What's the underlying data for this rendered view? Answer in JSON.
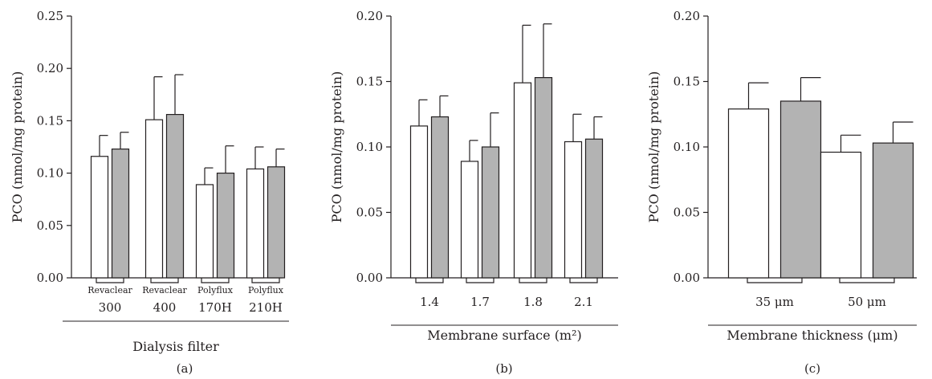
{
  "colors": {
    "before": "#ffffff",
    "after": "#b3b3b3",
    "stroke": "#231f20"
  },
  "chart_data": [
    {
      "panel": "(a)",
      "type": "bar",
      "ylabel": "PCO (nmol/mg protein)",
      "xlabel": "Dialysis filter",
      "ylim": [
        0,
        0.25
      ],
      "yticks": [
        "0.00",
        "0.05",
        "0.10",
        "0.15",
        "0.20",
        "0.25"
      ],
      "categories": [
        {
          "line1": "Revaclear",
          "line2": "300"
        },
        {
          "line1": "Revaclear",
          "line2": "400"
        },
        {
          "line1": "Polyflux",
          "line2": "170H"
        },
        {
          "line1": "Polyflux",
          "line2": "210H"
        }
      ],
      "series": [
        {
          "values": [
            0.116,
            0.151,
            0.089,
            0.104
          ],
          "errors": [
            0.02,
            0.041,
            0.016,
            0.021
          ]
        },
        {
          "values": [
            0.123,
            0.156,
            0.1,
            0.106
          ],
          "errors": [
            0.016,
            0.038,
            0.026,
            0.017
          ]
        }
      ],
      "grid": false
    },
    {
      "panel": "(b)",
      "type": "bar",
      "ylabel": "PCO (nmol/mg protein)",
      "xlabel": "Membrane surface (m²)",
      "ylim": [
        0,
        0.2
      ],
      "yticks": [
        "0.00",
        "0.05",
        "0.10",
        "0.15",
        "0.20"
      ],
      "categories": [
        {
          "line1": "1.4"
        },
        {
          "line1": "1.7"
        },
        {
          "line1": "1.8"
        },
        {
          "line1": "2.1"
        }
      ],
      "series": [
        {
          "values": [
            0.116,
            0.089,
            0.149,
            0.104
          ],
          "errors": [
            0.02,
            0.016,
            0.044,
            0.021
          ]
        },
        {
          "values": [
            0.123,
            0.1,
            0.153,
            0.106
          ],
          "errors": [
            0.016,
            0.026,
            0.041,
            0.017
          ]
        }
      ],
      "grid": false
    },
    {
      "panel": "(c)",
      "type": "bar",
      "ylabel": "PCO (nmol/mg protein)",
      "xlabel": "Membrane thickness (μm)",
      "ylim": [
        0,
        0.2
      ],
      "yticks": [
        "0.00",
        "0.05",
        "0.10",
        "0.15",
        "0.20"
      ],
      "categories": [
        {
          "line1": "35 μm"
        },
        {
          "line1": "50 μm"
        }
      ],
      "series": [
        {
          "values": [
            0.129,
            0.096
          ],
          "errors": [
            0.02,
            0.013
          ]
        },
        {
          "values": [
            0.135,
            0.103
          ],
          "errors": [
            0.018,
            0.016
          ]
        }
      ],
      "grid": false
    }
  ]
}
